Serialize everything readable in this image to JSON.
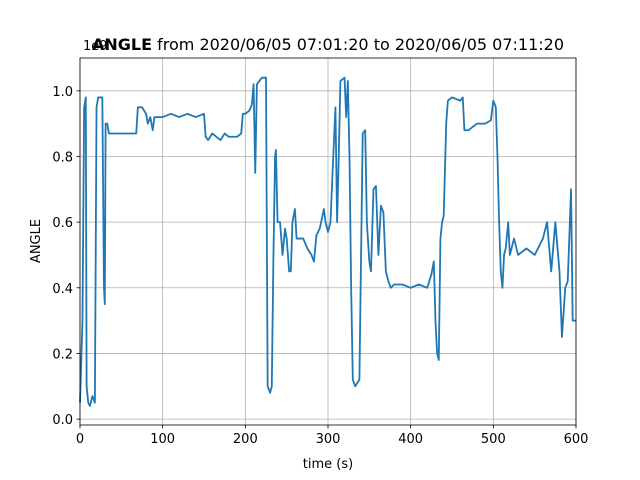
{
  "chart_data": {
    "type": "line",
    "title_bold": "ANGLE",
    "title": " from 2020/06/05 07:01:20 to 2020/06/05 07:11:20",
    "offset_text": "1e9",
    "xlabel": "time (s)",
    "ylabel": "ANGLE",
    "color": "#1f77b4",
    "grid": true,
    "xlim": [
      0,
      600
    ],
    "xticks": [
      0,
      100,
      200,
      300,
      400,
      500,
      600
    ],
    "ylim": [
      -0.018,
      1.1
    ],
    "yticks": [
      {
        "value": 0,
        "label": "0.0"
      },
      0.2,
      0.4,
      0.6,
      0.8,
      {
        "value": 1,
        "label": "1.0"
      }
    ],
    "x": [
      0,
      3,
      5,
      7,
      8,
      10,
      12,
      15,
      18,
      20,
      22,
      27,
      29,
      30,
      31,
      33,
      35,
      40,
      50,
      60,
      68,
      70,
      75,
      80,
      82,
      85,
      88,
      90,
      100,
      110,
      120,
      130,
      140,
      150,
      152,
      155,
      160,
      165,
      170,
      175,
      180,
      190,
      195,
      197,
      200,
      205,
      208,
      210,
      212,
      214,
      220,
      225,
      227,
      230,
      232,
      234,
      236,
      237,
      239,
      242,
      245,
      248,
      250,
      253,
      255,
      257,
      260,
      262,
      265,
      270,
      275,
      280,
      283,
      286,
      290,
      295,
      297,
      300,
      303,
      306,
      309,
      311,
      313,
      315,
      320,
      322,
      324,
      326,
      328,
      330,
      333,
      338,
      340,
      342,
      345,
      347,
      350,
      352,
      355,
      358,
      361,
      364,
      367,
      370,
      373,
      376,
      380,
      390,
      400,
      410,
      420,
      425,
      428,
      430,
      432,
      434,
      436,
      438,
      440,
      443,
      445,
      450,
      460,
      463,
      465,
      470,
      480,
      490,
      497,
      500,
      503,
      505,
      507,
      509,
      511,
      513,
      515,
      518,
      520,
      525,
      530,
      540,
      550,
      560,
      565,
      570,
      575,
      580,
      583,
      587,
      590,
      594,
      596,
      600
    ],
    "values": [
      0.05,
      0.3,
      0.95,
      0.98,
      0.1,
      0.05,
      0.04,
      0.07,
      0.05,
      0.95,
      0.98,
      0.98,
      0.4,
      0.35,
      0.9,
      0.9,
      0.87,
      0.87,
      0.87,
      0.87,
      0.87,
      0.95,
      0.95,
      0.93,
      0.9,
      0.92,
      0.88,
      0.92,
      0.92,
      0.93,
      0.92,
      0.93,
      0.92,
      0.93,
      0.86,
      0.85,
      0.87,
      0.86,
      0.85,
      0.87,
      0.86,
      0.86,
      0.87,
      0.93,
      0.93,
      0.94,
      0.96,
      1.02,
      0.75,
      1.02,
      1.04,
      1.04,
      0.1,
      0.08,
      0.1,
      0.5,
      0.8,
      0.82,
      0.6,
      0.6,
      0.5,
      0.58,
      0.55,
      0.45,
      0.45,
      0.6,
      0.64,
      0.55,
      0.55,
      0.55,
      0.52,
      0.5,
      0.48,
      0.56,
      0.58,
      0.64,
      0.6,
      0.57,
      0.6,
      0.78,
      0.95,
      0.6,
      0.8,
      1.03,
      1.04,
      0.92,
      1.03,
      0.8,
      0.4,
      0.12,
      0.1,
      0.12,
      0.5,
      0.87,
      0.88,
      0.6,
      0.48,
      0.45,
      0.7,
      0.71,
      0.5,
      0.65,
      0.63,
      0.45,
      0.42,
      0.4,
      0.41,
      0.41,
      0.4,
      0.41,
      0.4,
      0.44,
      0.48,
      0.3,
      0.2,
      0.18,
      0.55,
      0.6,
      0.62,
      0.9,
      0.97,
      0.98,
      0.97,
      0.98,
      0.88,
      0.88,
      0.9,
      0.9,
      0.91,
      0.97,
      0.95,
      0.8,
      0.6,
      0.45,
      0.4,
      0.5,
      0.52,
      0.6,
      0.5,
      0.55,
      0.5,
      0.52,
      0.5,
      0.55,
      0.6,
      0.45,
      0.6,
      0.45,
      0.25,
      0.4,
      0.42,
      0.7,
      0.3,
      0.3
    ]
  }
}
